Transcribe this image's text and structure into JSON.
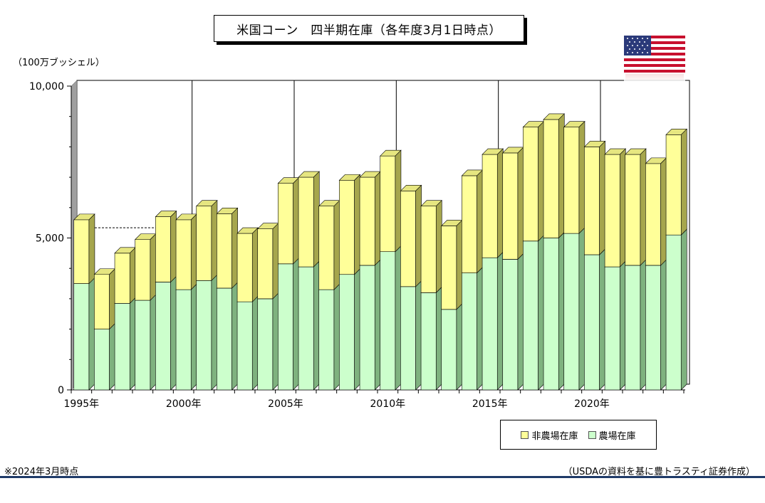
{
  "title": "米国コーン　四半期在庫（各年度3月1日時点）",
  "unit_label": "（100万ブッシェル）",
  "footer": {
    "note": "※2024年3月時点",
    "source": "（USDAの資料を基に豊トラスティ証券作成）"
  },
  "flag": {
    "name": "us-flag-icon"
  },
  "colors": {
    "farm_front": "#ccffcc",
    "farm_top": "#b4e6b4",
    "farm_side": "#7fb27f",
    "nonfarm_front": "#ffff99",
    "nonfarm_top": "#e6e680",
    "nonfarm_side": "#a6a64d",
    "wall": "#a0a0a0"
  },
  "chart_data": {
    "type": "bar",
    "stacked": true,
    "title": "米国コーン　四半期在庫（各年度3月1日時点）",
    "ylabel": "（100万ブッシェル）",
    "ylim": [
      0,
      10000
    ],
    "yticks": [
      0,
      5000,
      10000
    ],
    "ytick_labels": [
      "0",
      "5,000",
      "10,000"
    ],
    "x": [
      1995,
      1996,
      1997,
      1998,
      1999,
      2000,
      2001,
      2002,
      2003,
      2004,
      2005,
      2006,
      2007,
      2008,
      2009,
      2010,
      2011,
      2012,
      2013,
      2014,
      2015,
      2016,
      2017,
      2018,
      2019,
      2020,
      2021,
      2022,
      2023,
      2024
    ],
    "xtick_labels": [
      "1995年",
      "2000年",
      "2005年",
      "2010年",
      "2015年",
      "2020年"
    ],
    "xtick_years": [
      1995,
      2000,
      2005,
      2010,
      2015,
      2020
    ],
    "series": [
      {
        "name": "農場在庫",
        "values": [
          3500,
          2000,
          2850,
          2950,
          3550,
          3300,
          3600,
          3350,
          2900,
          3000,
          4150,
          4050,
          3300,
          3800,
          4100,
          4550,
          3400,
          3200,
          2650,
          3850,
          4350,
          4300,
          4900,
          5000,
          5150,
          4450,
          4050,
          4100,
          4100,
          5100
        ]
      },
      {
        "name": "非農場在庫",
        "values": [
          2100,
          1800,
          1650,
          2000,
          2150,
          2300,
          2450,
          2450,
          2250,
          2300,
          2650,
          2950,
          2750,
          3100,
          2900,
          3150,
          3150,
          2850,
          2750,
          3200,
          3400,
          3500,
          3750,
          3900,
          3500,
          3550,
          3700,
          3650,
          3350,
          3300
        ]
      }
    ],
    "reference_line": {
      "value": 5150,
      "style": "dashed"
    },
    "legend": {
      "position": "bottom-right",
      "entries": [
        "非農場在庫",
        "農場在庫"
      ]
    }
  }
}
